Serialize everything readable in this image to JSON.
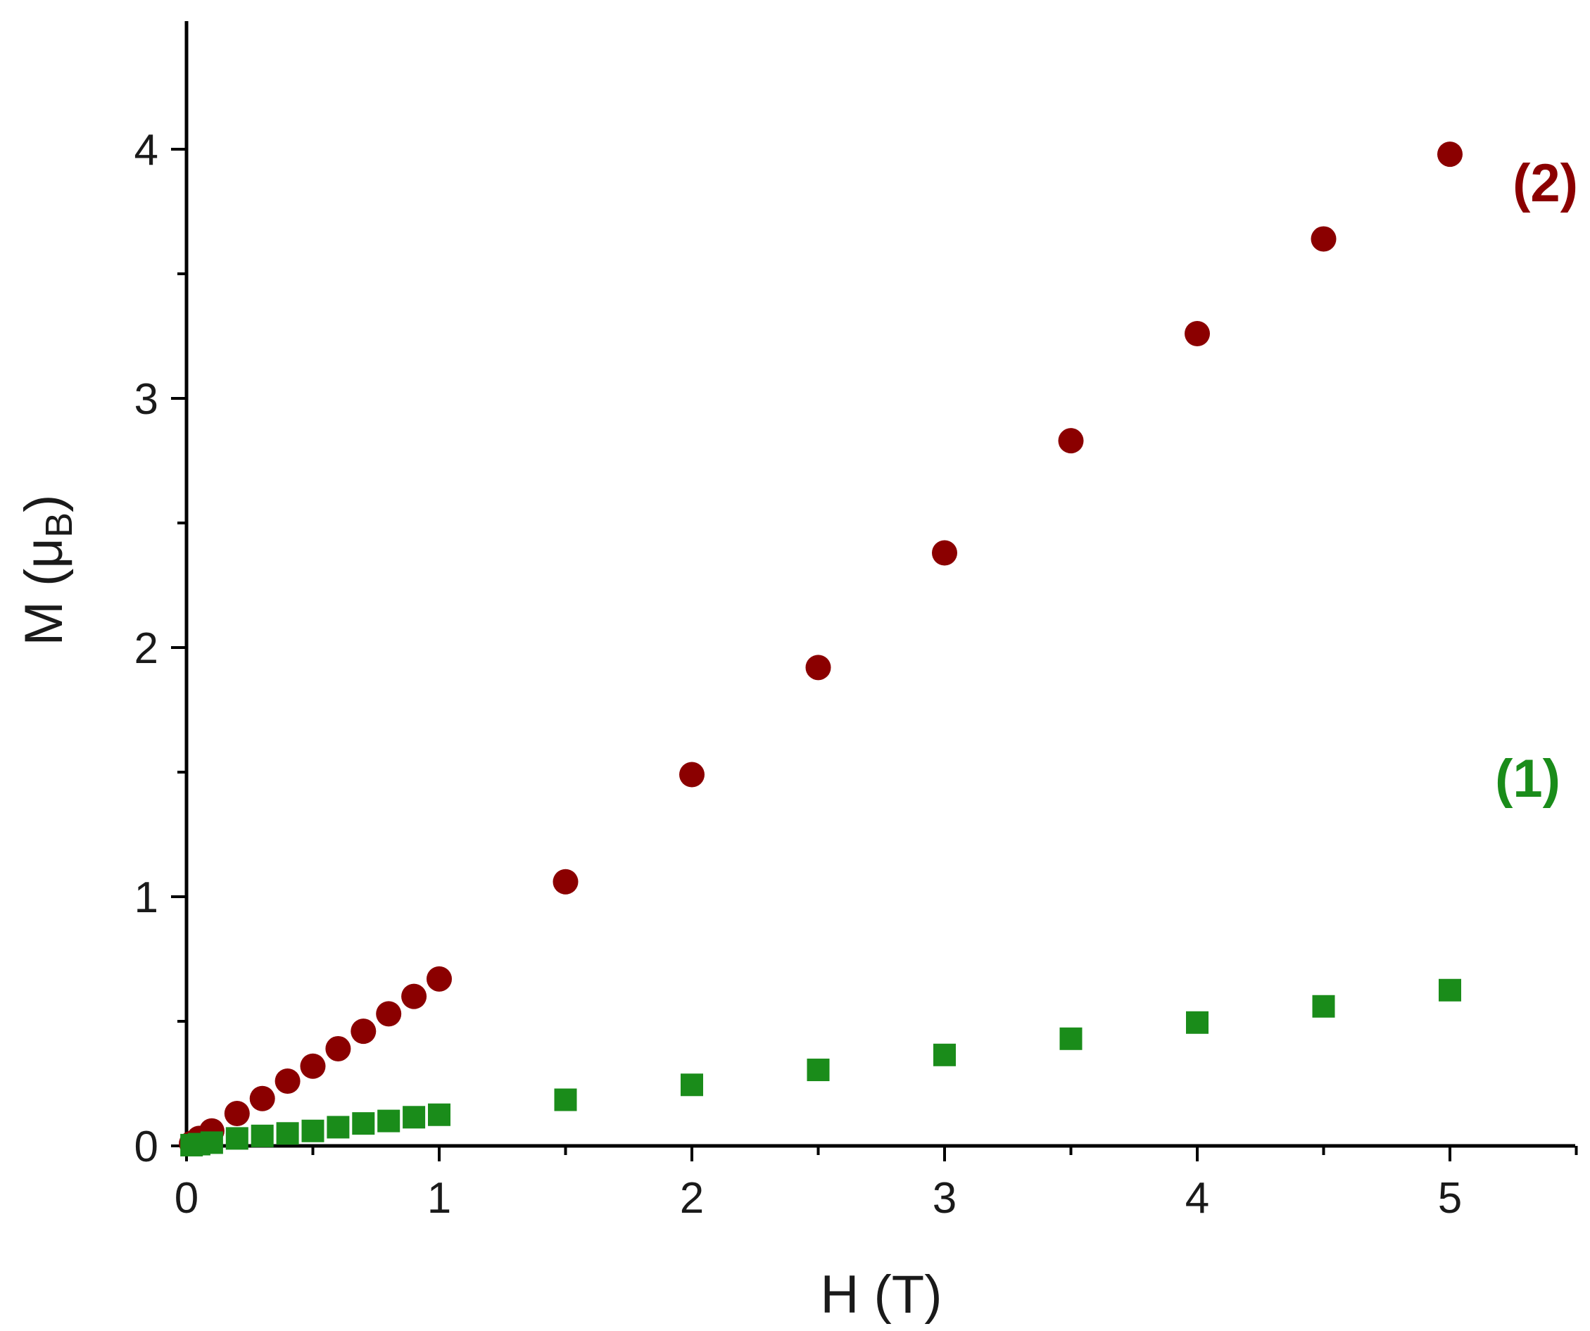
{
  "chart_data": {
    "type": "scatter",
    "xlabel": "H (T)",
    "ylabel": {
      "main": "M (",
      "mu": "μ",
      "sub": "B",
      "close": ")"
    },
    "xlim": [
      0,
      5.5
    ],
    "ylim": [
      0,
      4.5
    ],
    "x_ticks": [
      0,
      1,
      2,
      3,
      4,
      5
    ],
    "x_tick_labels": [
      "0",
      "1",
      "2",
      "3",
      "4",
      "5"
    ],
    "x_minor_ticks": [
      0.5,
      1.5,
      2.5,
      3.5,
      4.5,
      5.5
    ],
    "y_ticks": [
      0,
      1,
      2,
      3,
      4
    ],
    "y_tick_labels": [
      "0",
      "1",
      "2",
      "3",
      "4"
    ],
    "y_minor_ticks": [
      0.5,
      1.5,
      2.5,
      3.5
    ],
    "grid": false,
    "legend": "none",
    "series": [
      {
        "name": "(2)",
        "marker": "circle",
        "color": "#8b0000",
        "x": [
          0.02,
          0.05,
          0.1,
          0.2,
          0.3,
          0.4,
          0.5,
          0.6,
          0.7,
          0.8,
          0.9,
          1.0,
          1.5,
          2.0,
          2.5,
          3.0,
          3.5,
          4.0,
          4.5,
          5.0
        ],
        "y": [
          0.01,
          0.03,
          0.06,
          0.13,
          0.19,
          0.26,
          0.32,
          0.39,
          0.46,
          0.53,
          0.6,
          0.67,
          1.06,
          1.49,
          1.92,
          2.38,
          2.83,
          3.26,
          3.64,
          3.98
        ]
      },
      {
        "name": "(1)",
        "marker": "square",
        "color": "#1a8c1a",
        "x": [
          0.02,
          0.05,
          0.1,
          0.2,
          0.3,
          0.4,
          0.5,
          0.6,
          0.7,
          0.8,
          0.9,
          1.0,
          1.5,
          2.0,
          2.5,
          3.0,
          3.5,
          4.0,
          4.5,
          5.0
        ],
        "y": [
          0.003,
          0.007,
          0.013,
          0.03,
          0.04,
          0.05,
          0.06,
          0.075,
          0.09,
          0.1,
          0.115,
          0.125,
          0.185,
          0.245,
          0.305,
          0.365,
          0.43,
          0.495,
          0.56,
          0.625
        ]
      }
    ],
    "annotations": [
      {
        "text": "(2)",
        "series": 0,
        "color": "#8b0000"
      },
      {
        "text": "(1)",
        "series": 1,
        "color": "#1a8c1a"
      }
    ]
  }
}
